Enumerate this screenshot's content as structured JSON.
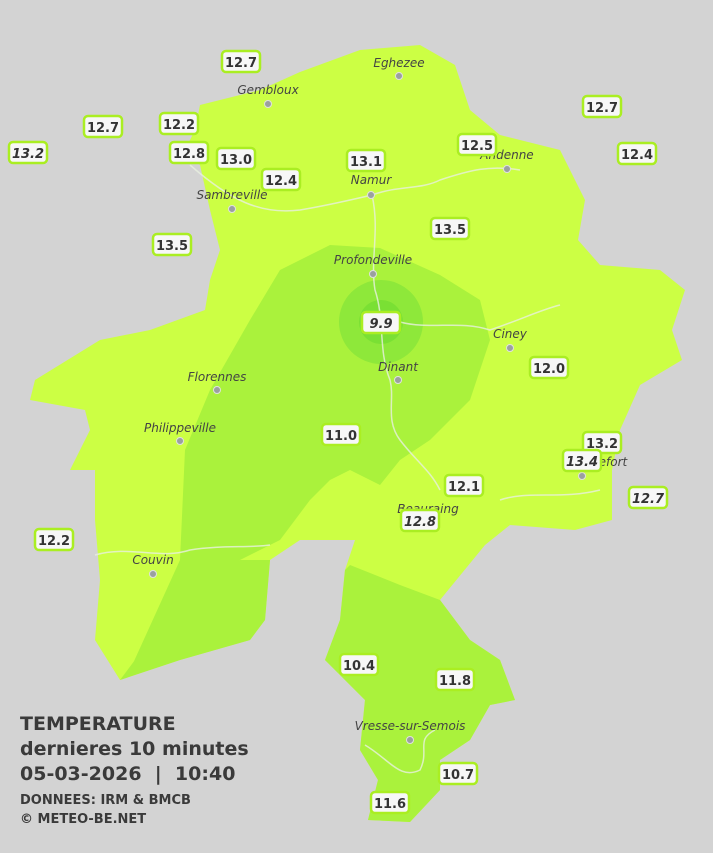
{
  "title": "TEMPERATURE",
  "subtitle": "dernieres 10 minutes",
  "datetime": "05-03-2026  |  10:40",
  "source": "DONNEES: IRM & BMCB",
  "credit": "© METEO-BE.NET",
  "cities": [
    {
      "name": "Eghezee"
    },
    {
      "name": "Gembloux"
    },
    {
      "name": "Andenne"
    },
    {
      "name": "Namur"
    },
    {
      "name": "Sambreville"
    },
    {
      "name": "Profondeville"
    },
    {
      "name": "Ciney"
    },
    {
      "name": "Dinant"
    },
    {
      "name": "Florennes"
    },
    {
      "name": "Philippeville"
    },
    {
      "name": "Rochefort"
    },
    {
      "name": "Beauraing"
    },
    {
      "name": "Couvin"
    },
    {
      "name": "Vresse-sur-Semois"
    }
  ],
  "stations": [
    {
      "label": "12.7"
    },
    {
      "label": "12.7"
    },
    {
      "label": "12.2"
    },
    {
      "label": "13.2"
    },
    {
      "label": "12.8"
    },
    {
      "label": "13.0"
    },
    {
      "label": "12.4"
    },
    {
      "label": "13.1"
    },
    {
      "label": "12.5"
    },
    {
      "label": "12.7"
    },
    {
      "label": "12.4"
    },
    {
      "label": "13.5"
    },
    {
      "label": "13.5"
    },
    {
      "label": "9.9"
    },
    {
      "label": "12.0"
    },
    {
      "label": "11.0"
    },
    {
      "label": "13.2"
    },
    {
      "label": "13.4"
    },
    {
      "label": "12.1"
    },
    {
      "label": "12.7"
    },
    {
      "label": "12.8"
    },
    {
      "label": "12.2"
    },
    {
      "label": "10.4"
    },
    {
      "label": "11.8"
    },
    {
      "label": "10.7"
    },
    {
      "label": "11.6"
    }
  ]
}
